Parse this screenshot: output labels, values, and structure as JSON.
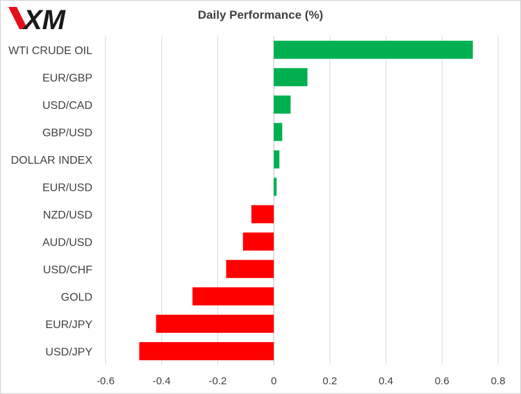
{
  "brand": {
    "logo_text": "XM",
    "logo_color": "#1a1a1a",
    "accent": "#e3101a"
  },
  "chart_data": {
    "type": "bar",
    "orientation": "horizontal",
    "title": "Daily Performance  (%)",
    "xlabel": "",
    "ylabel": "",
    "categories": [
      "WTI CRUDE OIL",
      "EUR/GBP",
      "USD/CAD",
      "GBP/USD",
      "DOLLAR INDEX",
      "EUR/USD",
      "NZD/USD",
      "AUD/USD",
      "USD/CHF",
      "GOLD",
      "EUR/JPY",
      "USD/JPY"
    ],
    "values": [
      0.71,
      0.12,
      0.06,
      0.03,
      0.02,
      0.01,
      -0.08,
      -0.11,
      -0.17,
      -0.29,
      -0.42,
      -0.48
    ],
    "xlim": [
      -0.6,
      0.8
    ],
    "xticks": [
      -0.6,
      -0.4,
      -0.2,
      0,
      0.2,
      0.4,
      0.6,
      0.8
    ],
    "xtick_labels": [
      "-0.6",
      "-0.4",
      "-0.2",
      "0",
      "0.2",
      "0.4",
      "0.6",
      "0.8"
    ],
    "grid": "vertical",
    "legend": "none",
    "colors": {
      "positive": "#00b050",
      "negative": "#ff0000",
      "grid": "#d9d9d9",
      "zero_line": "#bfbfbf"
    }
  }
}
